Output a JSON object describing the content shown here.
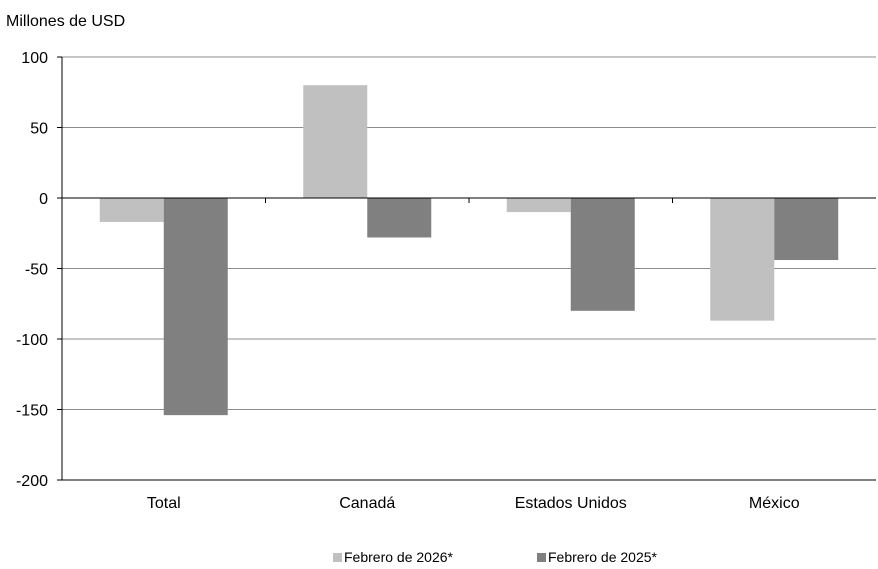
{
  "chart_data": {
    "type": "bar",
    "title": "",
    "ylabel": "Millones de USD",
    "xlabel": "",
    "categories": [
      "Total",
      "Canadá",
      "Estados Unidos",
      "México"
    ],
    "series": [
      {
        "name": "Febrero de 2026*",
        "values": [
          -17,
          80,
          -10,
          -87
        ],
        "color": "#c0c0c0"
      },
      {
        "name": "Febrero de 2025*",
        "values": [
          -154,
          -28,
          -80,
          -44
        ],
        "color": "#808080"
      }
    ],
    "ylim": [
      -200,
      100
    ],
    "yticks": [
      100,
      50,
      0,
      -50,
      -100,
      -150,
      -200
    ],
    "grid": true,
    "legend_position": "bottom"
  }
}
